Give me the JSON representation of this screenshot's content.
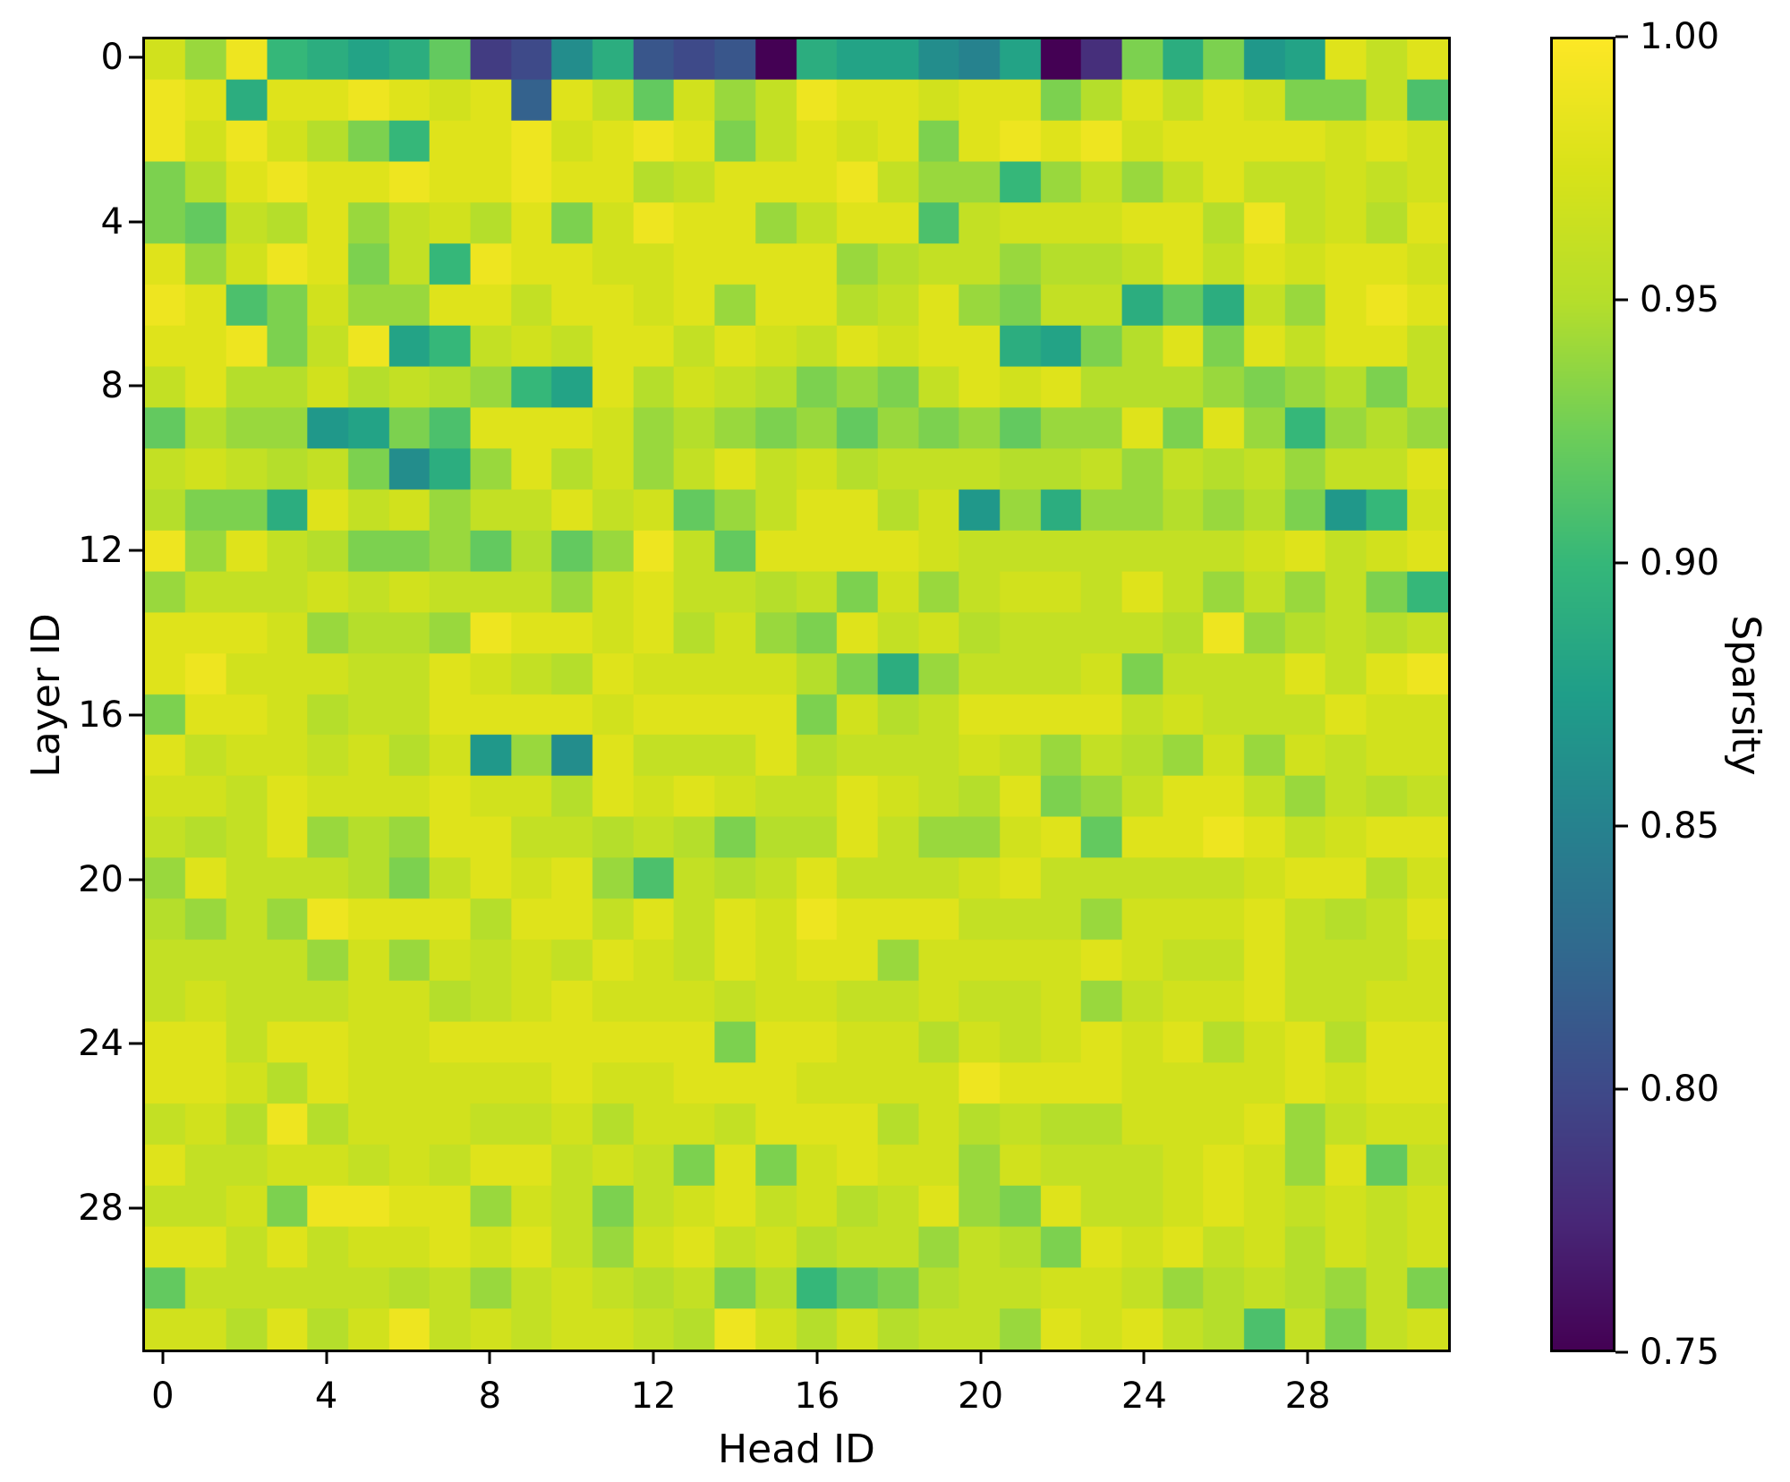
{
  "figure": {
    "background_color": "#ffffff",
    "axis_color": "#000000",
    "x_ticks": [
      0,
      4,
      8,
      12,
      16,
      20,
      24,
      28
    ],
    "y_ticks": [
      0,
      4,
      8,
      12,
      16,
      20,
      24,
      28
    ],
    "colorbar_ticks": [
      "1.00",
      "0.95",
      "0.90",
      "0.85",
      "0.80",
      "0.75"
    ]
  },
  "chart_data": {
    "type": "heatmap",
    "title": "",
    "xlabel": "Head ID",
    "ylabel": "Layer ID",
    "colorbar_label": "Sparsity",
    "colormap": "viridis",
    "vmin": 0.75,
    "vmax": 1.0,
    "n_rows": 32,
    "n_cols": 32,
    "x_tick_values": [
      0,
      4,
      8,
      12,
      16,
      20,
      24,
      28
    ],
    "y_tick_values": [
      0,
      4,
      8,
      12,
      16,
      20,
      24,
      28
    ],
    "values": [
      [
        0.97,
        0.94,
        0.99,
        0.9,
        0.89,
        0.88,
        0.89,
        0.92,
        0.79,
        0.8,
        0.86,
        0.89,
        0.81,
        0.8,
        0.81,
        0.75,
        0.89,
        0.88,
        0.88,
        0.86,
        0.85,
        0.88,
        0.75,
        0.78,
        0.93,
        0.89,
        0.93,
        0.87,
        0.88,
        0.98,
        0.96,
        0.98
      ],
      [
        0.99,
        0.98,
        0.89,
        0.98,
        0.98,
        0.99,
        0.98,
        0.97,
        0.98,
        0.82,
        0.98,
        0.96,
        0.92,
        0.97,
        0.94,
        0.96,
        0.99,
        0.98,
        0.98,
        0.97,
        0.98,
        0.98,
        0.93,
        0.95,
        0.98,
        0.96,
        0.98,
        0.97,
        0.93,
        0.93,
        0.96,
        0.91
      ],
      [
        0.99,
        0.97,
        0.99,
        0.97,
        0.95,
        0.93,
        0.9,
        0.98,
        0.98,
        0.99,
        0.97,
        0.98,
        0.99,
        0.98,
        0.93,
        0.96,
        0.98,
        0.97,
        0.98,
        0.93,
        0.98,
        0.99,
        0.98,
        0.99,
        0.97,
        0.98,
        0.98,
        0.98,
        0.98,
        0.97,
        0.98,
        0.97
      ],
      [
        0.93,
        0.95,
        0.98,
        0.99,
        0.98,
        0.98,
        0.99,
        0.98,
        0.98,
        0.99,
        0.98,
        0.98,
        0.95,
        0.96,
        0.98,
        0.98,
        0.98,
        0.99,
        0.96,
        0.94,
        0.94,
        0.9,
        0.94,
        0.96,
        0.94,
        0.96,
        0.98,
        0.96,
        0.96,
        0.97,
        0.96,
        0.97
      ],
      [
        0.93,
        0.92,
        0.96,
        0.95,
        0.98,
        0.94,
        0.96,
        0.97,
        0.95,
        0.98,
        0.93,
        0.97,
        0.99,
        0.98,
        0.98,
        0.94,
        0.96,
        0.98,
        0.98,
        0.91,
        0.96,
        0.97,
        0.97,
        0.97,
        0.98,
        0.98,
        0.95,
        0.99,
        0.96,
        0.97,
        0.95,
        0.98
      ],
      [
        0.98,
        0.94,
        0.97,
        0.99,
        0.98,
        0.93,
        0.96,
        0.9,
        0.99,
        0.98,
        0.98,
        0.97,
        0.97,
        0.98,
        0.98,
        0.98,
        0.98,
        0.94,
        0.95,
        0.96,
        0.96,
        0.94,
        0.95,
        0.95,
        0.96,
        0.98,
        0.96,
        0.98,
        0.97,
        0.98,
        0.98,
        0.97
      ],
      [
        0.99,
        0.98,
        0.91,
        0.93,
        0.97,
        0.94,
        0.94,
        0.98,
        0.98,
        0.96,
        0.98,
        0.98,
        0.97,
        0.98,
        0.94,
        0.98,
        0.98,
        0.95,
        0.96,
        0.98,
        0.94,
        0.93,
        0.96,
        0.96,
        0.89,
        0.92,
        0.89,
        0.96,
        0.94,
        0.98,
        0.99,
        0.98
      ],
      [
        0.98,
        0.98,
        0.99,
        0.93,
        0.96,
        0.99,
        0.88,
        0.9,
        0.96,
        0.97,
        0.96,
        0.98,
        0.98,
        0.96,
        0.98,
        0.97,
        0.96,
        0.98,
        0.97,
        0.98,
        0.98,
        0.89,
        0.88,
        0.93,
        0.95,
        0.98,
        0.93,
        0.98,
        0.96,
        0.98,
        0.98,
        0.96
      ],
      [
        0.96,
        0.98,
        0.95,
        0.95,
        0.97,
        0.95,
        0.96,
        0.95,
        0.94,
        0.9,
        0.88,
        0.98,
        0.95,
        0.97,
        0.96,
        0.95,
        0.93,
        0.94,
        0.93,
        0.96,
        0.98,
        0.97,
        0.98,
        0.95,
        0.95,
        0.95,
        0.94,
        0.93,
        0.94,
        0.95,
        0.93,
        0.96
      ],
      [
        0.92,
        0.95,
        0.94,
        0.94,
        0.87,
        0.88,
        0.93,
        0.91,
        0.98,
        0.98,
        0.98,
        0.97,
        0.94,
        0.95,
        0.94,
        0.93,
        0.94,
        0.92,
        0.94,
        0.93,
        0.94,
        0.92,
        0.94,
        0.94,
        0.98,
        0.93,
        0.98,
        0.94,
        0.9,
        0.94,
        0.95,
        0.94
      ],
      [
        0.96,
        0.97,
        0.96,
        0.95,
        0.96,
        0.93,
        0.86,
        0.89,
        0.94,
        0.98,
        0.95,
        0.97,
        0.94,
        0.96,
        0.98,
        0.96,
        0.97,
        0.95,
        0.96,
        0.96,
        0.96,
        0.95,
        0.95,
        0.96,
        0.94,
        0.96,
        0.95,
        0.96,
        0.94,
        0.96,
        0.96,
        0.98
      ],
      [
        0.95,
        0.93,
        0.93,
        0.89,
        0.98,
        0.96,
        0.97,
        0.94,
        0.96,
        0.96,
        0.98,
        0.96,
        0.97,
        0.92,
        0.94,
        0.96,
        0.98,
        0.98,
        0.95,
        0.97,
        0.87,
        0.94,
        0.89,
        0.94,
        0.94,
        0.95,
        0.94,
        0.95,
        0.93,
        0.87,
        0.9,
        0.97
      ],
      [
        0.99,
        0.94,
        0.98,
        0.96,
        0.95,
        0.93,
        0.93,
        0.94,
        0.92,
        0.95,
        0.92,
        0.94,
        0.99,
        0.96,
        0.92,
        0.98,
        0.98,
        0.98,
        0.98,
        0.97,
        0.96,
        0.96,
        0.96,
        0.96,
        0.96,
        0.96,
        0.96,
        0.97,
        0.98,
        0.96,
        0.97,
        0.98
      ],
      [
        0.94,
        0.96,
        0.96,
        0.96,
        0.97,
        0.96,
        0.97,
        0.96,
        0.96,
        0.96,
        0.94,
        0.97,
        0.98,
        0.96,
        0.96,
        0.95,
        0.96,
        0.93,
        0.97,
        0.94,
        0.96,
        0.97,
        0.97,
        0.96,
        0.98,
        0.96,
        0.94,
        0.96,
        0.94,
        0.96,
        0.93,
        0.9
      ],
      [
        0.98,
        0.98,
        0.98,
        0.97,
        0.94,
        0.95,
        0.95,
        0.94,
        0.99,
        0.98,
        0.98,
        0.97,
        0.98,
        0.95,
        0.97,
        0.94,
        0.93,
        0.98,
        0.96,
        0.97,
        0.95,
        0.96,
        0.96,
        0.96,
        0.96,
        0.95,
        0.99,
        0.94,
        0.95,
        0.96,
        0.95,
        0.96
      ],
      [
        0.98,
        0.99,
        0.97,
        0.97,
        0.97,
        0.96,
        0.96,
        0.98,
        0.97,
        0.96,
        0.95,
        0.98,
        0.97,
        0.97,
        0.97,
        0.97,
        0.95,
        0.93,
        0.89,
        0.94,
        0.96,
        0.96,
        0.96,
        0.97,
        0.93,
        0.96,
        0.96,
        0.96,
        0.98,
        0.96,
        0.98,
        0.99
      ],
      [
        0.93,
        0.98,
        0.98,
        0.97,
        0.95,
        0.96,
        0.96,
        0.98,
        0.98,
        0.98,
        0.98,
        0.97,
        0.98,
        0.98,
        0.98,
        0.98,
        0.93,
        0.97,
        0.95,
        0.96,
        0.98,
        0.98,
        0.98,
        0.98,
        0.96,
        0.97,
        0.96,
        0.96,
        0.96,
        0.98,
        0.97,
        0.97
      ],
      [
        0.98,
        0.96,
        0.97,
        0.97,
        0.96,
        0.97,
        0.95,
        0.97,
        0.87,
        0.94,
        0.86,
        0.98,
        0.96,
        0.96,
        0.96,
        0.98,
        0.95,
        0.96,
        0.96,
        0.96,
        0.97,
        0.96,
        0.94,
        0.96,
        0.95,
        0.94,
        0.97,
        0.94,
        0.97,
        0.96,
        0.97,
        0.97
      ],
      [
        0.97,
        0.97,
        0.96,
        0.98,
        0.97,
        0.97,
        0.97,
        0.98,
        0.97,
        0.97,
        0.95,
        0.98,
        0.97,
        0.98,
        0.97,
        0.96,
        0.96,
        0.98,
        0.97,
        0.96,
        0.95,
        0.98,
        0.93,
        0.94,
        0.96,
        0.98,
        0.98,
        0.96,
        0.94,
        0.96,
        0.95,
        0.96
      ],
      [
        0.96,
        0.95,
        0.96,
        0.98,
        0.94,
        0.95,
        0.94,
        0.98,
        0.98,
        0.96,
        0.96,
        0.95,
        0.96,
        0.95,
        0.93,
        0.95,
        0.95,
        0.98,
        0.96,
        0.94,
        0.94,
        0.97,
        0.98,
        0.92,
        0.98,
        0.98,
        0.99,
        0.98,
        0.96,
        0.97,
        0.98,
        0.98
      ],
      [
        0.94,
        0.98,
        0.96,
        0.96,
        0.96,
        0.95,
        0.93,
        0.96,
        0.98,
        0.97,
        0.98,
        0.94,
        0.91,
        0.96,
        0.95,
        0.96,
        0.98,
        0.96,
        0.96,
        0.96,
        0.97,
        0.98,
        0.96,
        0.96,
        0.96,
        0.96,
        0.96,
        0.97,
        0.98,
        0.98,
        0.95,
        0.97
      ],
      [
        0.95,
        0.94,
        0.96,
        0.94,
        0.99,
        0.98,
        0.98,
        0.98,
        0.95,
        0.98,
        0.98,
        0.96,
        0.98,
        0.96,
        0.98,
        0.97,
        0.99,
        0.98,
        0.98,
        0.98,
        0.96,
        0.96,
        0.96,
        0.94,
        0.97,
        0.97,
        0.97,
        0.98,
        0.96,
        0.95,
        0.96,
        0.98
      ],
      [
        0.96,
        0.96,
        0.96,
        0.96,
        0.94,
        0.97,
        0.94,
        0.97,
        0.96,
        0.97,
        0.96,
        0.98,
        0.97,
        0.96,
        0.98,
        0.97,
        0.98,
        0.98,
        0.94,
        0.97,
        0.97,
        0.97,
        0.97,
        0.98,
        0.97,
        0.96,
        0.96,
        0.98,
        0.96,
        0.96,
        0.96,
        0.97
      ],
      [
        0.96,
        0.97,
        0.96,
        0.96,
        0.96,
        0.97,
        0.97,
        0.95,
        0.96,
        0.97,
        0.98,
        0.97,
        0.97,
        0.97,
        0.96,
        0.97,
        0.97,
        0.96,
        0.96,
        0.97,
        0.96,
        0.96,
        0.97,
        0.94,
        0.96,
        0.97,
        0.97,
        0.98,
        0.96,
        0.96,
        0.97,
        0.97
      ],
      [
        0.98,
        0.98,
        0.96,
        0.98,
        0.98,
        0.97,
        0.97,
        0.98,
        0.98,
        0.98,
        0.98,
        0.98,
        0.98,
        0.98,
        0.93,
        0.98,
        0.98,
        0.97,
        0.97,
        0.95,
        0.97,
        0.96,
        0.97,
        0.98,
        0.97,
        0.98,
        0.95,
        0.97,
        0.98,
        0.95,
        0.98,
        0.98
      ],
      [
        0.98,
        0.98,
        0.97,
        0.95,
        0.98,
        0.97,
        0.97,
        0.97,
        0.97,
        0.97,
        0.98,
        0.97,
        0.97,
        0.98,
        0.98,
        0.98,
        0.97,
        0.97,
        0.97,
        0.97,
        0.99,
        0.98,
        0.98,
        0.98,
        0.97,
        0.97,
        0.97,
        0.97,
        0.98,
        0.97,
        0.98,
        0.98
      ],
      [
        0.96,
        0.97,
        0.95,
        0.99,
        0.95,
        0.97,
        0.97,
        0.97,
        0.96,
        0.96,
        0.97,
        0.95,
        0.97,
        0.97,
        0.96,
        0.98,
        0.98,
        0.98,
        0.95,
        0.97,
        0.95,
        0.96,
        0.95,
        0.95,
        0.97,
        0.97,
        0.97,
        0.98,
        0.94,
        0.96,
        0.97,
        0.97
      ],
      [
        0.98,
        0.96,
        0.96,
        0.97,
        0.97,
        0.96,
        0.97,
        0.96,
        0.98,
        0.98,
        0.96,
        0.97,
        0.96,
        0.93,
        0.98,
        0.93,
        0.97,
        0.98,
        0.97,
        0.97,
        0.94,
        0.97,
        0.96,
        0.96,
        0.96,
        0.97,
        0.98,
        0.97,
        0.94,
        0.98,
        0.92,
        0.96
      ],
      [
        0.96,
        0.96,
        0.97,
        0.93,
        0.99,
        0.99,
        0.98,
        0.98,
        0.94,
        0.97,
        0.96,
        0.93,
        0.96,
        0.97,
        0.98,
        0.96,
        0.97,
        0.95,
        0.96,
        0.98,
        0.94,
        0.93,
        0.98,
        0.96,
        0.96,
        0.97,
        0.98,
        0.97,
        0.96,
        0.97,
        0.96,
        0.97
      ],
      [
        0.98,
        0.98,
        0.96,
        0.98,
        0.96,
        0.97,
        0.97,
        0.98,
        0.97,
        0.98,
        0.96,
        0.94,
        0.97,
        0.98,
        0.96,
        0.97,
        0.95,
        0.96,
        0.96,
        0.94,
        0.96,
        0.95,
        0.93,
        0.98,
        0.97,
        0.98,
        0.96,
        0.97,
        0.95,
        0.97,
        0.96,
        0.97
      ],
      [
        0.92,
        0.96,
        0.96,
        0.96,
        0.96,
        0.96,
        0.95,
        0.96,
        0.94,
        0.96,
        0.97,
        0.96,
        0.95,
        0.96,
        0.93,
        0.95,
        0.9,
        0.92,
        0.93,
        0.95,
        0.96,
        0.96,
        0.97,
        0.97,
        0.96,
        0.94,
        0.95,
        0.96,
        0.95,
        0.94,
        0.96,
        0.93
      ],
      [
        0.97,
        0.97,
        0.95,
        0.98,
        0.95,
        0.97,
        0.99,
        0.96,
        0.97,
        0.96,
        0.97,
        0.97,
        0.96,
        0.95,
        0.99,
        0.97,
        0.95,
        0.97,
        0.95,
        0.96,
        0.96,
        0.94,
        0.98,
        0.97,
        0.98,
        0.96,
        0.95,
        0.91,
        0.96,
        0.93,
        0.96,
        0.97
      ]
    ]
  }
}
